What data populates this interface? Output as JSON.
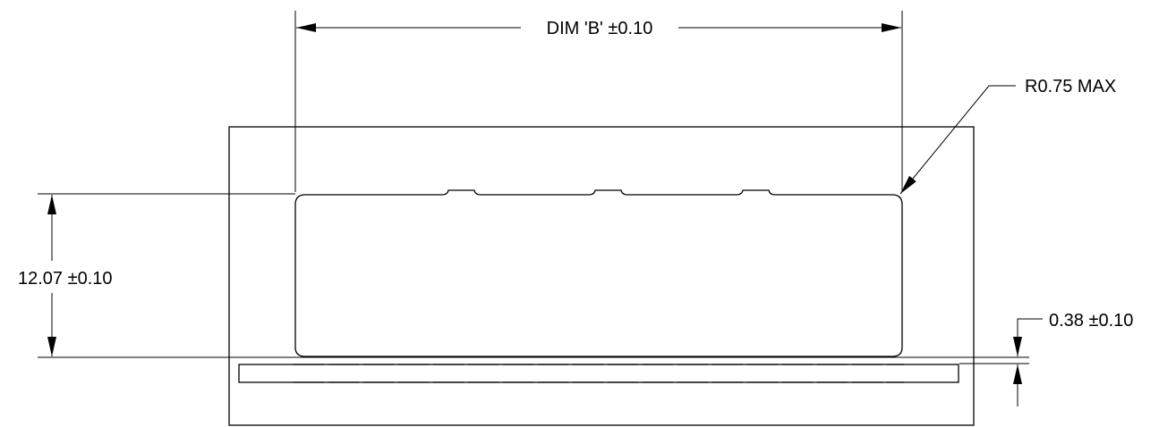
{
  "drawing": {
    "dim_b_label": "DIM 'B' ±0.10",
    "radius_label": "R0.75 MAX",
    "height_label": "12.07 ±0.10",
    "gap_label": "0.38 ±0.10"
  },
  "colors": {
    "line": "#000000",
    "background": "#ffffff"
  }
}
